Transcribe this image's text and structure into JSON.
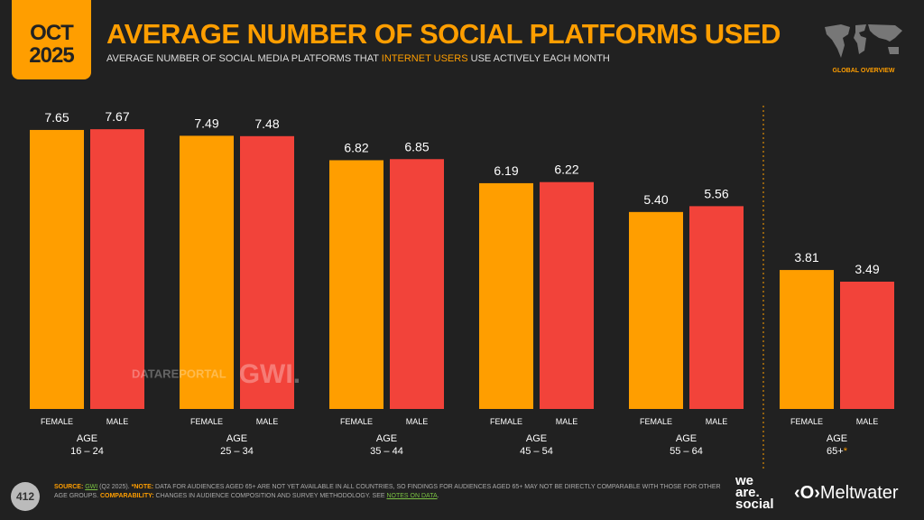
{
  "header": {
    "month": "OCT",
    "year": "2025",
    "title": "AVERAGE NUMBER OF SOCIAL PLATFORMS USED",
    "subtitle_pre": "AVERAGE NUMBER OF SOCIAL MEDIA PLATFORMS THAT ",
    "subtitle_hl": "INTERNET USERS",
    "subtitle_post": " USE ACTIVELY EACH MONTH",
    "region": "GLOBAL OVERVIEW"
  },
  "chart_data": {
    "type": "bar",
    "categories": [
      "AGE 16 – 24",
      "AGE 25 – 34",
      "AGE 35 – 44",
      "AGE 45 – 54",
      "AGE 55 – 64",
      "AGE 65+*"
    ],
    "category_lines": [
      [
        "AGE",
        "16 – 24"
      ],
      [
        "AGE",
        "25 – 34"
      ],
      [
        "AGE",
        "35 – 44"
      ],
      [
        "AGE",
        "45 – 54"
      ],
      [
        "AGE",
        "55 – 64"
      ],
      [
        "AGE",
        "65+"
      ]
    ],
    "series": [
      {
        "name": "FEMALE",
        "color": "#ff9e00",
        "values": [
          7.65,
          7.49,
          6.82,
          6.19,
          5.4,
          3.81
        ]
      },
      {
        "name": "MALE",
        "color": "#f2433a",
        "values": [
          7.67,
          7.48,
          6.85,
          6.22,
          5.56,
          3.49
        ]
      }
    ],
    "data_labels": true,
    "grid": false,
    "ylim": [
      0,
      7.67
    ]
  },
  "watermark": {
    "a": "DATAREPORTAL",
    "b": "GWI."
  },
  "footer": {
    "page": "412",
    "source_label": "SOURCE:",
    "source": "GWI",
    "source_rest": " (Q2 2025). ",
    "note_label": "*NOTE:",
    "note": " DATA FOR AUDIENCES AGED 65+ ARE NOT YET AVAILABLE IN ALL COUNTRIES, SO FINDINGS FOR AUDIENCES AGED 65+ MAY NOT BE DIRECTLY COMPARABLE WITH THOSE FOR OTHER AGE GROUPS. ",
    "comp_label": "COMPARABILITY:",
    "comp": " CHANGES IN AUDIENCE COMPOSITION AND SURVEY METHODOLOGY. SEE ",
    "notes_link": "NOTES ON DATA",
    "end": ".",
    "brand1": "we are. social",
    "brand2": "Meltwater"
  }
}
